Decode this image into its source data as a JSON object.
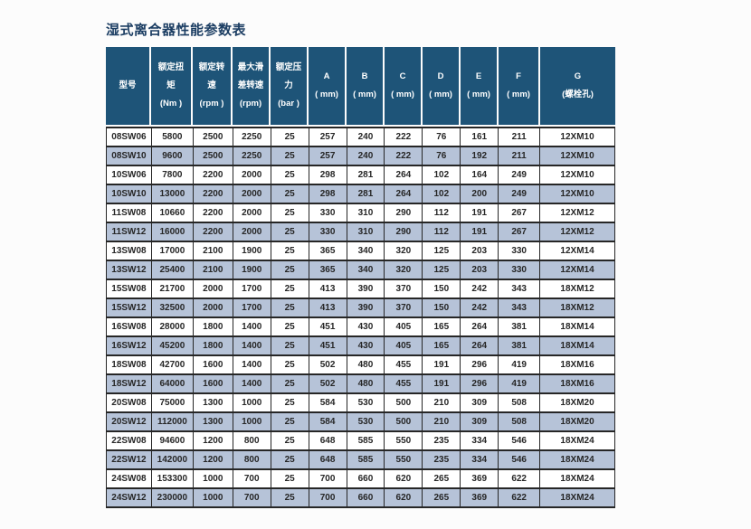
{
  "page": {
    "title": "湿式离合器性能参数表"
  },
  "colors": {
    "page_bg": "#FCFCFC",
    "header_bg": "#1E5478",
    "header_text": "#FFFFFF",
    "alt_row_bg": "#B6C3D8",
    "title_color": "#1C3E63",
    "border_color": "#262626",
    "body_text": "#262626"
  },
  "table": {
    "columns": [
      {
        "name": "model",
        "header_lines": [
          "型号"
        ]
      },
      {
        "name": "rated-torque",
        "header_lines": [
          "额定扭",
          "矩",
          "(Nm )"
        ]
      },
      {
        "name": "rated-speed",
        "header_lines": [
          "额定转",
          "速",
          "(rpm )"
        ]
      },
      {
        "name": "max-slip-speed",
        "header_lines": [
          "最大滑",
          "差转速",
          "(rpm)"
        ]
      },
      {
        "name": "rated-pressure",
        "header_lines": [
          "额定压",
          "力",
          "(bar )"
        ]
      },
      {
        "name": "dim-a",
        "header_lines": [
          "A",
          "( mm)"
        ]
      },
      {
        "name": "dim-b",
        "header_lines": [
          "B",
          "( mm)"
        ]
      },
      {
        "name": "dim-c",
        "header_lines": [
          "C",
          "( mm)"
        ]
      },
      {
        "name": "dim-d",
        "header_lines": [
          "D",
          "( mm)"
        ]
      },
      {
        "name": "dim-e",
        "header_lines": [
          "E",
          "( mm)"
        ]
      },
      {
        "name": "dim-f",
        "header_lines": [
          "F",
          "( mm)"
        ]
      },
      {
        "name": "dim-g",
        "header_lines": [
          "G",
          "(螺栓孔)"
        ]
      }
    ],
    "rows": [
      [
        "08SW06",
        "5800",
        "2500",
        "2250",
        "25",
        "257",
        "240",
        "222",
        "76",
        "161",
        "211",
        "12XM10"
      ],
      [
        "08SW10",
        "9600",
        "2500",
        "2250",
        "25",
        "257",
        "240",
        "222",
        "76",
        "192",
        "211",
        "12XM10"
      ],
      [
        "10SW06",
        "7800",
        "2200",
        "2000",
        "25",
        "298",
        "281",
        "264",
        "102",
        "164",
        "249",
        "12XM10"
      ],
      [
        "10SW10",
        "13000",
        "2200",
        "2000",
        "25",
        "298",
        "281",
        "264",
        "102",
        "200",
        "249",
        "12XM10"
      ],
      [
        "11SW08",
        "10660",
        "2200",
        "2000",
        "25",
        "330",
        "310",
        "290",
        "112",
        "191",
        "267",
        "12XM12"
      ],
      [
        "11SW12",
        "16000",
        "2200",
        "2000",
        "25",
        "330",
        "310",
        "290",
        "112",
        "191",
        "267",
        "12XM12"
      ],
      [
        "13SW08",
        "17000",
        "2100",
        "1900",
        "25",
        "365",
        "340",
        "320",
        "125",
        "203",
        "330",
        "12XM14"
      ],
      [
        "13SW12",
        "25400",
        "2100",
        "1900",
        "25",
        "365",
        "340",
        "320",
        "125",
        "203",
        "330",
        "12XM14"
      ],
      [
        "15SW08",
        "21700",
        "2000",
        "1700",
        "25",
        "413",
        "390",
        "370",
        "150",
        "242",
        "343",
        "18XM12"
      ],
      [
        "15SW12",
        "32500",
        "2000",
        "1700",
        "25",
        "413",
        "390",
        "370",
        "150",
        "242",
        "343",
        "18XM12"
      ],
      [
        "16SW08",
        "28000",
        "1800",
        "1400",
        "25",
        "451",
        "430",
        "405",
        "165",
        "264",
        "381",
        "18XM14"
      ],
      [
        "16SW12",
        "45200",
        "1800",
        "1400",
        "25",
        "451",
        "430",
        "405",
        "165",
        "264",
        "381",
        "18XM14"
      ],
      [
        "18SW08",
        "42700",
        "1600",
        "1400",
        "25",
        "502",
        "480",
        "455",
        "191",
        "296",
        "419",
        "18XM16"
      ],
      [
        "18SW12",
        "64000",
        "1600",
        "1400",
        "25",
        "502",
        "480",
        "455",
        "191",
        "296",
        "419",
        "18XM16"
      ],
      [
        "20SW08",
        "75000",
        "1300",
        "1000",
        "25",
        "584",
        "530",
        "500",
        "210",
        "309",
        "508",
        "18XM20"
      ],
      [
        "20SW12",
        "112000",
        "1300",
        "1000",
        "25",
        "584",
        "530",
        "500",
        "210",
        "309",
        "508",
        "18XM20"
      ],
      [
        "22SW08",
        "94600",
        "1200",
        "800",
        "25",
        "648",
        "585",
        "550",
        "235",
        "334",
        "546",
        "18XM24"
      ],
      [
        "22SW12",
        "142000",
        "1200",
        "800",
        "25",
        "648",
        "585",
        "550",
        "235",
        "334",
        "546",
        "18XM24"
      ],
      [
        "24SW08",
        "153300",
        "1000",
        "700",
        "25",
        "700",
        "660",
        "620",
        "265",
        "369",
        "622",
        "18XM24"
      ],
      [
        "24SW12",
        "230000",
        "1000",
        "700",
        "25",
        "700",
        "660",
        "620",
        "265",
        "369",
        "622",
        "18XM24"
      ]
    ]
  }
}
